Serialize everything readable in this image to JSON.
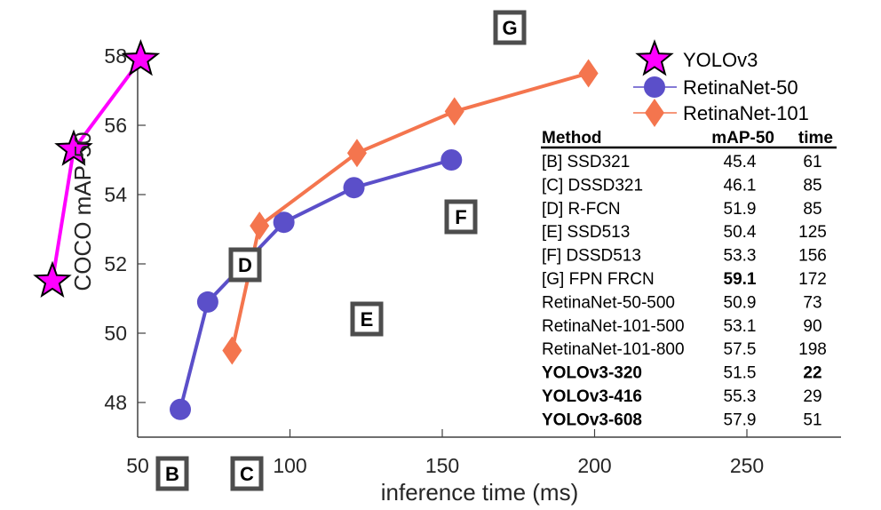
{
  "chart_data": {
    "type": "line",
    "title": "",
    "xlabel": "inference time (ms)",
    "ylabel": "COCO mAP-50",
    "xlim": [
      50,
      280
    ],
    "ylim": [
      47,
      58.5
    ],
    "xticks": [
      50,
      100,
      150,
      200,
      250
    ],
    "yticks": [
      48,
      50,
      52,
      54,
      56,
      58
    ],
    "grid": false,
    "legend_position": "top-right",
    "series": [
      {
        "name": "YOLOv3",
        "color": "#ff00ff",
        "marker": "star",
        "points": [
          {
            "x": 22,
            "y": 51.5
          },
          {
            "x": 29,
            "y": 55.3
          },
          {
            "x": 51,
            "y": 57.9
          }
        ]
      },
      {
        "name": "RetinaNet-50",
        "color": "#5b4fc9",
        "marker": "circle",
        "points": [
          {
            "x": 64,
            "y": 47.8
          },
          {
            "x": 73,
            "y": 50.9
          },
          {
            "x": 98,
            "y": 53.2
          },
          {
            "x": 121,
            "y": 54.2
          },
          {
            "x": 153,
            "y": 55.0
          }
        ]
      },
      {
        "name": "RetinaNet-101",
        "color": "#f4754e",
        "marker": "diamond",
        "points": [
          {
            "x": 81,
            "y": 49.5
          },
          {
            "x": 90,
            "y": 53.1
          },
          {
            "x": 122,
            "y": 55.2
          },
          {
            "x": 154,
            "y": 56.4
          },
          {
            "x": 198,
            "y": 57.5
          }
        ]
      }
    ],
    "annotations": [
      {
        "label": "B",
        "x": 61,
        "y": 45.4
      },
      {
        "label": "C",
        "x": 85,
        "y": 46.1
      },
      {
        "label": "D",
        "x": 85,
        "y": 51.9
      },
      {
        "label": "E",
        "x": 125,
        "y": 50.4
      },
      {
        "label": "F",
        "x": 156,
        "y": 53.3
      },
      {
        "label": "G",
        "x": 172,
        "y": 59.1
      }
    ],
    "table": {
      "headers": [
        "Method",
        "mAP-50",
        "time"
      ],
      "rows": [
        {
          "method": "[B] SSD321",
          "map": "45.4",
          "time": "61",
          "bold_method": false,
          "bold_map": false,
          "bold_time": false
        },
        {
          "method": "[C] DSSD321",
          "map": "46.1",
          "time": "85",
          "bold_method": false,
          "bold_map": false,
          "bold_time": false
        },
        {
          "method": "[D] R-FCN",
          "map": "51.9",
          "time": "85",
          "bold_method": false,
          "bold_map": false,
          "bold_time": false
        },
        {
          "method": "[E] SSD513",
          "map": "50.4",
          "time": "125",
          "bold_method": false,
          "bold_map": false,
          "bold_time": false
        },
        {
          "method": "[F] DSSD513",
          "map": "53.3",
          "time": "156",
          "bold_method": false,
          "bold_map": false,
          "bold_time": false
        },
        {
          "method": "[G] FPN FRCN",
          "map": "59.1",
          "time": "172",
          "bold_method": false,
          "bold_map": true,
          "bold_time": false
        },
        {
          "method": "RetinaNet-50-500",
          "map": "50.9",
          "time": "73",
          "bold_method": false,
          "bold_map": false,
          "bold_time": false
        },
        {
          "method": "RetinaNet-101-500",
          "map": "53.1",
          "time": "90",
          "bold_method": false,
          "bold_map": false,
          "bold_time": false
        },
        {
          "method": "RetinaNet-101-800",
          "map": "57.5",
          "time": "198",
          "bold_method": false,
          "bold_map": false,
          "bold_time": false
        },
        {
          "method": "YOLOv3-320",
          "map": "51.5",
          "time": "22",
          "bold_method": true,
          "bold_map": false,
          "bold_time": true
        },
        {
          "method": "YOLOv3-416",
          "map": "55.3",
          "time": "29",
          "bold_method": true,
          "bold_map": false,
          "bold_time": false
        },
        {
          "method": "YOLOv3-608",
          "map": "57.9",
          "time": "51",
          "bold_method": true,
          "bold_map": false,
          "bold_time": false
        }
      ]
    }
  }
}
